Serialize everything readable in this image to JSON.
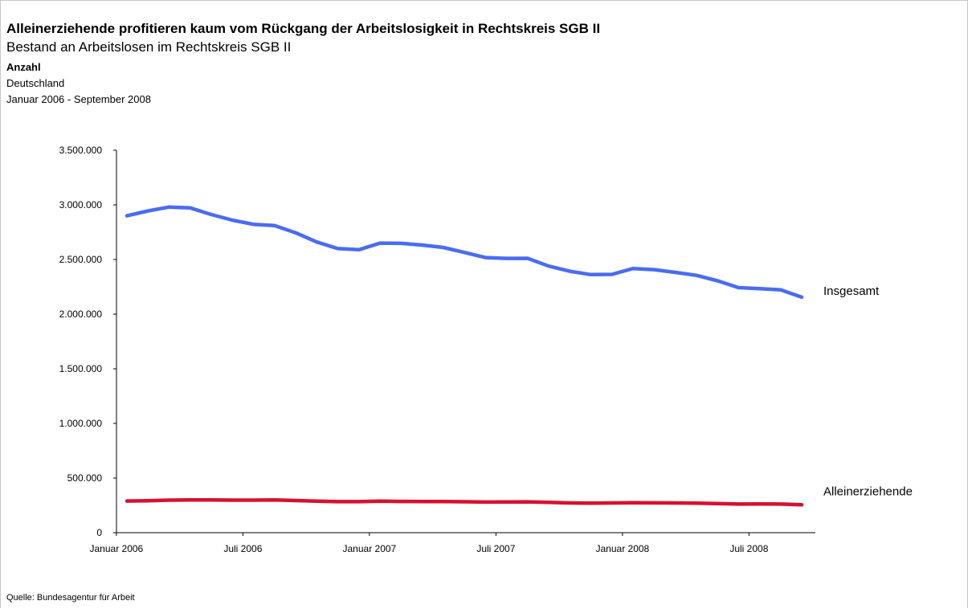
{
  "header": {
    "title": "Alleinerziehende profitieren kaum vom Rückgang der Arbeitslosigkeit in Rechtskreis SGB II",
    "subtitle": "Bestand an Arbeitslosen im Rechtskreis SGB II",
    "unit": "Anzahl",
    "region": "Deutschland",
    "period": "Januar 2006 - September 2008"
  },
  "footer": {
    "source": "Quelle: Bundesagentur für Arbeit"
  },
  "chart_data": {
    "type": "line",
    "title": "Alleinerziehende profitieren kaum vom Rückgang der Arbeitslosigkeit in Rechtskreis SGB II",
    "subtitle": "Bestand an Arbeitslosen im Rechtskreis SGB II",
    "xlabel": "",
    "ylabel": "",
    "ylim": [
      0,
      3500000
    ],
    "y_ticks": [
      0,
      500000,
      1000000,
      1500000,
      2000000,
      2500000,
      3000000,
      3500000
    ],
    "y_tick_labels": [
      "0",
      "500.000",
      "1.000.000",
      "1.500.000",
      "2.000.000",
      "2.500.000",
      "3.000.000",
      "3.500.000"
    ],
    "x": [
      "2006-01",
      "2006-02",
      "2006-03",
      "2006-04",
      "2006-05",
      "2006-06",
      "2006-07",
      "2006-08",
      "2006-09",
      "2006-10",
      "2006-11",
      "2006-12",
      "2007-01",
      "2007-02",
      "2007-03",
      "2007-04",
      "2007-05",
      "2007-06",
      "2007-07",
      "2007-08",
      "2007-09",
      "2007-10",
      "2007-11",
      "2007-12",
      "2008-01",
      "2008-02",
      "2008-03",
      "2008-04",
      "2008-05",
      "2008-06",
      "2008-07",
      "2008-08",
      "2008-09"
    ],
    "x_tick_labels": [
      {
        "x": "2006-01",
        "label": "Januar 2006"
      },
      {
        "x": "2006-07",
        "label": "Juli 2006"
      },
      {
        "x": "2007-01",
        "label": "Januar 2007"
      },
      {
        "x": "2007-07",
        "label": "Juli 2007"
      },
      {
        "x": "2008-01",
        "label": "Januar 2008"
      },
      {
        "x": "2008-07",
        "label": "Juli 2008"
      }
    ],
    "grid": false,
    "legend": "direct labels at line ends",
    "series": [
      {
        "name": "Insgesamt",
        "color": "#4a6cf2",
        "values": [
          2900000,
          2945000,
          2980000,
          2972000,
          2912000,
          2860000,
          2822000,
          2810000,
          2745000,
          2660000,
          2600000,
          2590000,
          2650000,
          2648000,
          2632000,
          2610000,
          2565000,
          2518000,
          2510000,
          2511000,
          2440000,
          2393000,
          2362000,
          2364000,
          2418000,
          2407000,
          2382000,
          2355000,
          2306000,
          2243000,
          2234000,
          2222000,
          2155000
        ]
      },
      {
        "name": "Alleinerziehende",
        "color": "#d8102f",
        "values": [
          290000,
          293000,
          298000,
          300000,
          299000,
          298000,
          298000,
          299000,
          294000,
          289000,
          284000,
          284000,
          288000,
          286000,
          285000,
          285000,
          283000,
          280000,
          281000,
          282000,
          277000,
          272000,
          270000,
          272000,
          274000,
          273000,
          272000,
          270000,
          266000,
          262000,
          263000,
          262000,
          255000
        ]
      }
    ]
  }
}
